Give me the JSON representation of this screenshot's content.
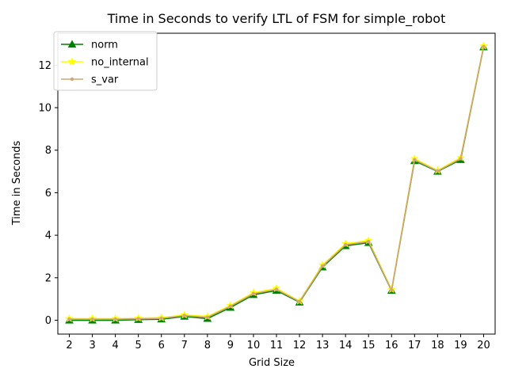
{
  "chart_data": {
    "type": "line",
    "title": "Time in Seconds to verify LTL of FSM for simple_robot",
    "xlabel": "Grid Size",
    "ylabel": "Time in Seconds",
    "categories": [
      2,
      3,
      4,
      5,
      6,
      7,
      8,
      9,
      10,
      11,
      12,
      13,
      14,
      15,
      16,
      17,
      18,
      19,
      20
    ],
    "ylim": [
      -0.65,
      13.5
    ],
    "yticks": [
      0,
      2,
      4,
      6,
      8,
      10,
      12
    ],
    "grid": false,
    "legend_placement": "top-left",
    "series": [
      {
        "name": "norm",
        "color": "#008000",
        "marker": "triangle",
        "values": [
          0.0,
          0.0,
          0.0,
          0.03,
          0.05,
          0.18,
          0.08,
          0.6,
          1.2,
          1.4,
          0.85,
          2.5,
          3.5,
          3.65,
          1.4,
          7.5,
          7.0,
          7.55,
          12.85
        ]
      },
      {
        "name": "no_internal",
        "color": "#ffff00",
        "marker": "star",
        "values": [
          0.08,
          0.08,
          0.08,
          0.1,
          0.12,
          0.25,
          0.18,
          0.7,
          1.3,
          1.5,
          0.9,
          2.6,
          3.6,
          3.75,
          1.45,
          7.6,
          7.05,
          7.65,
          12.9
        ]
      },
      {
        "name": "s_var",
        "color": "#d2a679",
        "marker": "dot",
        "values": [
          0.05,
          0.05,
          0.05,
          0.07,
          0.09,
          0.22,
          0.14,
          0.66,
          1.25,
          1.45,
          0.88,
          2.55,
          3.55,
          3.7,
          1.42,
          7.55,
          7.02,
          7.6,
          12.87
        ]
      }
    ]
  }
}
